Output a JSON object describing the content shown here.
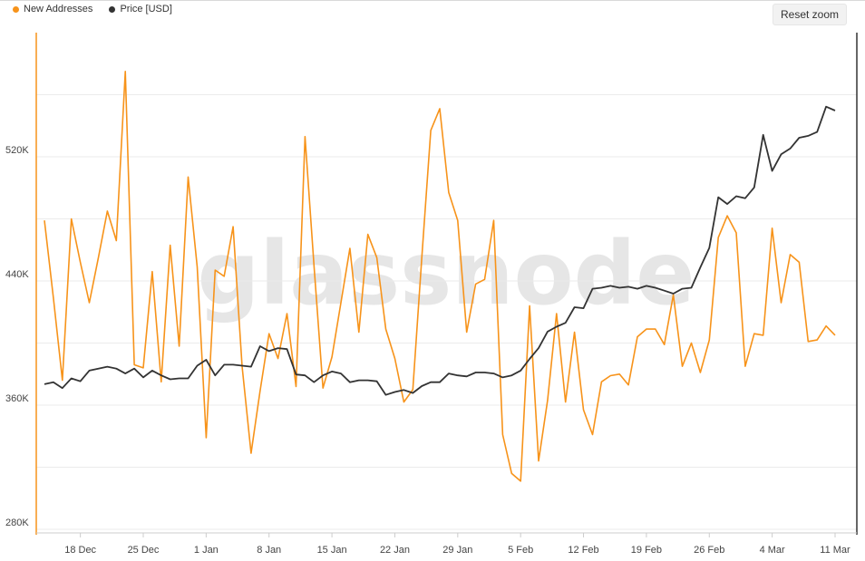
{
  "legend": {
    "series_a_label": "New Addresses",
    "series_a_color": "#f7931a",
    "series_b_label": "Price [USD]",
    "series_b_color": "#333333"
  },
  "toolbar": {
    "reset_zoom_label": "Reset zoom"
  },
  "watermark": "glassnode",
  "chart_data": {
    "type": "line",
    "x_start": "2023-12-14",
    "x_ticks": [
      "18 Dec",
      "25 Dec",
      "1 Jan",
      "8 Jan",
      "15 Jan",
      "22 Jan",
      "29 Jan",
      "5 Feb",
      "12 Feb",
      "19 Feb",
      "26 Feb",
      "4 Mar",
      "11 Mar"
    ],
    "y_left": {
      "ticks": [
        "280K",
        "360K",
        "440K",
        "520K"
      ],
      "ylim": [
        280000,
        600000
      ]
    },
    "grid": true,
    "legend_position": "top-left",
    "series": [
      {
        "name": "New Addresses",
        "color": "#f7931a",
        "axis": "left",
        "values": [
          479000,
          429000,
          376000,
          480000,
          452000,
          426000,
          455000,
          485000,
          466000,
          575000,
          386000,
          384000,
          446000,
          375000,
          463000,
          398000,
          507000,
          449000,
          339000,
          447000,
          443000,
          475000,
          385000,
          329000,
          369000,
          406000,
          390000,
          419000,
          372000,
          533000,
          450000,
          371000,
          391000,
          426000,
          461000,
          407000,
          470000,
          455000,
          409000,
          390000,
          362000,
          370000,
          455000,
          537000,
          551000,
          497000,
          479000,
          407000,
          438000,
          441000,
          479000,
          341000,
          316000,
          311000,
          424000,
          324000,
          363000,
          419000,
          362000,
          407000,
          357000,
          341000,
          375000,
          379000,
          380000,
          373000,
          404000,
          409000,
          409000,
          399000,
          431000,
          385000,
          400000,
          381000,
          402000,
          468000,
          482000,
          471000,
          385000,
          406000,
          405000,
          474000,
          426000,
          457000,
          452000,
          401000,
          402000,
          411000,
          405000
        ]
      },
      {
        "name": "Price [USD]",
        "color": "#333333",
        "axis": "right",
        "values": [
          41900,
          42100,
          41500,
          42500,
          42200,
          43300,
          43500,
          43700,
          43500,
          43000,
          43500,
          42600,
          43300,
          42800,
          42400,
          42500,
          42500,
          43800,
          44400,
          42800,
          43900,
          43900,
          43800,
          43700,
          45800,
          45300,
          45600,
          45500,
          42900,
          42800,
          42100,
          42800,
          43200,
          43000,
          42100,
          42300,
          42300,
          42200,
          40800,
          41100,
          41300,
          41000,
          41700,
          42100,
          42100,
          43000,
          42800,
          42700,
          43100,
          43100,
          43000,
          42600,
          42800,
          43300,
          44500,
          45600,
          47300,
          47800,
          48200,
          49800,
          49700,
          51700,
          51800,
          52000,
          51800,
          51900,
          51700,
          52000,
          51800,
          51500,
          51200,
          51700,
          51800,
          53900,
          55900,
          61100,
          60400,
          61200,
          61000,
          62100,
          67500,
          63800,
          65500,
          66100,
          67200,
          67400,
          67800,
          70400,
          70000
        ]
      }
    ]
  }
}
